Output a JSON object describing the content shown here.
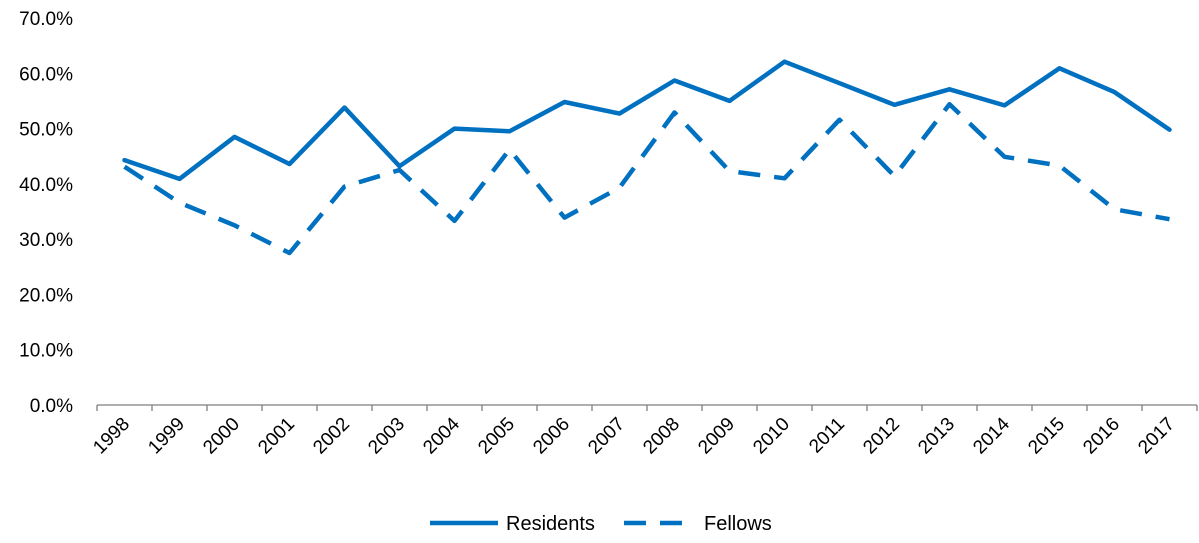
{
  "colors": {
    "series": "#0070C0",
    "axis": "#7f7f7f",
    "text": "#000000",
    "background": "#ffffff"
  },
  "chart_data": {
    "type": "line",
    "title": "",
    "xlabel": "",
    "ylabel": "",
    "x": [
      "1998",
      "1999",
      "2000",
      "2001",
      "2002",
      "2003",
      "2004",
      "2005",
      "2006",
      "2007",
      "2008",
      "2009",
      "2010",
      "2011",
      "2012",
      "2013",
      "2014",
      "2015",
      "2016",
      "2017"
    ],
    "y_ticks": [
      "0.0%",
      "10.0%",
      "20.0%",
      "30.0%",
      "40.0%",
      "50.0%",
      "60.0%",
      "70.0%"
    ],
    "ylim": [
      0,
      70
    ],
    "y_unit": "percent",
    "grid": false,
    "legend_position": "bottom",
    "series": [
      {
        "name": "Residents",
        "line_style": "solid",
        "values": [
          44.3,
          40.9,
          48.5,
          43.6,
          53.8,
          43.2,
          50.0,
          49.5,
          54.8,
          52.7,
          58.7,
          55.0,
          62.1,
          58.2,
          54.3,
          57.1,
          54.2,
          60.9,
          56.6,
          49.8
        ]
      },
      {
        "name": "Fellows",
        "line_style": "dashed",
        "values": [
          43.1,
          36.6,
          32.5,
          27.5,
          39.5,
          42.5,
          33.3,
          46.2,
          33.9,
          39.3,
          52.9,
          42.3,
          41.0,
          51.6,
          41.4,
          54.4,
          44.9,
          43.3,
          35.4,
          33.6
        ]
      }
    ]
  }
}
